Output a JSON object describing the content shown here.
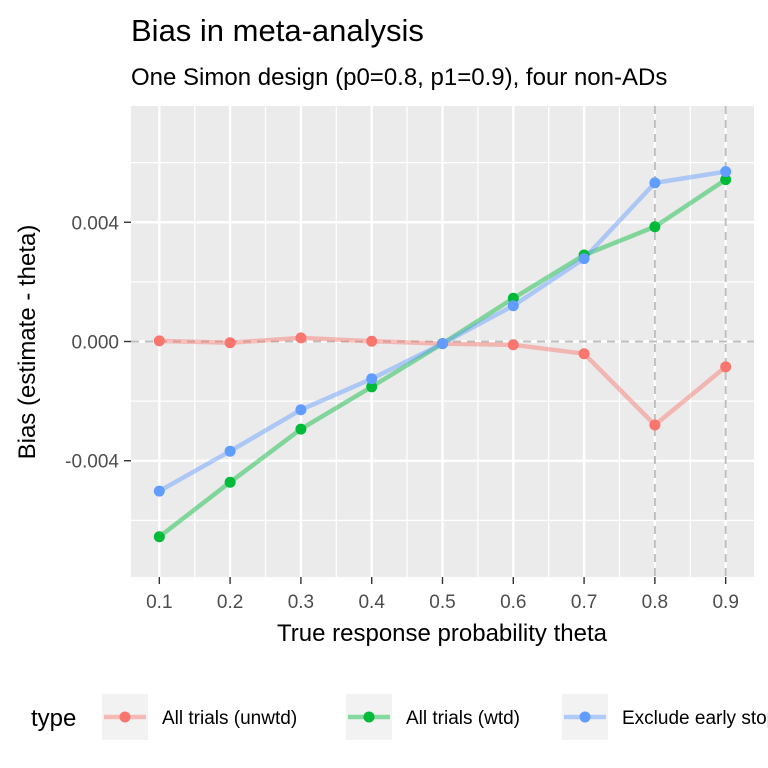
{
  "chart_data": {
    "type": "line",
    "title": "Bias in meta-analysis",
    "subtitle": "One Simon design (p0=0.8, p1=0.9), four non-ADs",
    "xlabel": "True response probability theta",
    "ylabel": "Bias (estimate - theta)",
    "x": [
      0.1,
      0.2,
      0.3,
      0.4,
      0.5,
      0.6,
      0.7,
      0.8,
      0.9
    ],
    "x_tick_labels": [
      "0.1",
      "0.2",
      "0.3",
      "0.4",
      "0.5",
      "0.6",
      "0.7",
      "0.8",
      "0.9"
    ],
    "y_ticks": [
      -0.004,
      0.0,
      0.004
    ],
    "y_tick_labels": [
      "-0.004",
      "0.000",
      "0.004"
    ],
    "xlim": [
      0.06,
      0.94
    ],
    "ylim": [
      -0.0079,
      0.0079
    ],
    "reference_lines": {
      "horizontal": [
        0.0
      ],
      "vertical": [
        0.8,
        0.9
      ]
    },
    "grid": true,
    "legend": {
      "title": "type",
      "position": "bottom"
    },
    "series": [
      {
        "name": "All trials (unwtd)",
        "color": "#F8766D",
        "values": [
          2e-05,
          -4e-05,
          0.00012,
          1e-05,
          -7e-05,
          -0.00011,
          -0.00041,
          -0.0028,
          -0.00085
        ]
      },
      {
        "name": "All trials (wtd)",
        "color": "#00BA38",
        "values": [
          -0.00655,
          -0.00472,
          -0.00294,
          -0.00152,
          -7e-05,
          0.00145,
          0.0029,
          0.00385,
          0.00543
        ]
      },
      {
        "name": "Exclude early stopping",
        "color": "#619CFF",
        "values": [
          -0.00502,
          -0.00368,
          -0.00229,
          -0.00125,
          -7e-05,
          0.0012,
          0.00278,
          0.00532,
          0.0057
        ]
      }
    ]
  }
}
